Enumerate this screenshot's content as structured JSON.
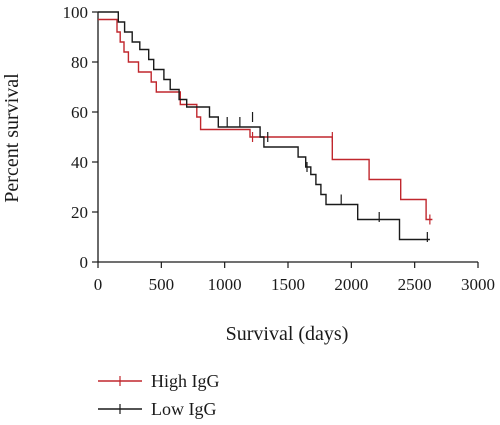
{
  "chart_data": {
    "type": "line",
    "xlabel": "Survival (days)",
    "ylabel": "Percent survival",
    "xlim": [
      0,
      3000
    ],
    "ylim": [
      0,
      100
    ],
    "x_ticks": [
      0,
      500,
      1000,
      1500,
      2000,
      2500,
      3000
    ],
    "y_ticks": [
      0,
      20,
      40,
      60,
      80,
      100
    ],
    "x_tick_labels": [
      "0",
      "500",
      "1000",
      "1500",
      "2000",
      "2500",
      "3000"
    ],
    "y_tick_labels": [
      "0",
      "20",
      "40",
      "60",
      "80",
      "100"
    ],
    "grid": false,
    "legend": "bottom-left",
    "step": true,
    "series": [
      {
        "name": "High IgG",
        "color": "#c0272d",
        "points": [
          [
            0,
            97
          ],
          [
            150,
            97
          ],
          [
            150,
            92
          ],
          [
            175,
            92
          ],
          [
            175,
            88
          ],
          [
            205,
            88
          ],
          [
            205,
            84
          ],
          [
            240,
            84
          ],
          [
            240,
            80
          ],
          [
            320,
            80
          ],
          [
            320,
            76
          ],
          [
            420,
            76
          ],
          [
            420,
            72
          ],
          [
            460,
            72
          ],
          [
            460,
            68
          ],
          [
            650,
            68
          ],
          [
            650,
            63
          ],
          [
            780,
            63
          ],
          [
            780,
            58
          ],
          [
            810,
            58
          ],
          [
            810,
            53
          ],
          [
            1200,
            53
          ],
          [
            1200,
            50
          ],
          [
            1850,
            50
          ],
          [
            1850,
            41
          ],
          [
            2140,
            41
          ],
          [
            2140,
            33
          ],
          [
            2390,
            33
          ],
          [
            2390,
            25
          ],
          [
            2590,
            25
          ],
          [
            2590,
            17
          ],
          [
            2640,
            17
          ]
        ],
        "censored": [
          [
            1220,
            50
          ],
          [
            1850,
            50
          ],
          [
            2620,
            17
          ]
        ]
      },
      {
        "name": "Low IgG",
        "color": "#1a1a1a",
        "points": [
          [
            0,
            100
          ],
          [
            160,
            100
          ],
          [
            160,
            96
          ],
          [
            210,
            96
          ],
          [
            210,
            92
          ],
          [
            270,
            92
          ],
          [
            270,
            88
          ],
          [
            330,
            88
          ],
          [
            330,
            85
          ],
          [
            400,
            85
          ],
          [
            400,
            81
          ],
          [
            440,
            81
          ],
          [
            440,
            77
          ],
          [
            520,
            77
          ],
          [
            520,
            73
          ],
          [
            570,
            73
          ],
          [
            570,
            69
          ],
          [
            640,
            69
          ],
          [
            640,
            65
          ],
          [
            700,
            65
          ],
          [
            700,
            62
          ],
          [
            880,
            62
          ],
          [
            880,
            58
          ],
          [
            950,
            58
          ],
          [
            950,
            54
          ],
          [
            1280,
            54
          ],
          [
            1280,
            50
          ],
          [
            1310,
            50
          ],
          [
            1310,
            46
          ],
          [
            1580,
            46
          ],
          [
            1580,
            42
          ],
          [
            1640,
            42
          ],
          [
            1640,
            38
          ],
          [
            1680,
            38
          ],
          [
            1680,
            35
          ],
          [
            1720,
            35
          ],
          [
            1720,
            31
          ],
          [
            1760,
            31
          ],
          [
            1760,
            27
          ],
          [
            1800,
            27
          ],
          [
            1800,
            23
          ],
          [
            2050,
            23
          ],
          [
            2050,
            17
          ],
          [
            2380,
            17
          ],
          [
            2380,
            9
          ],
          [
            2620,
            9
          ]
        ],
        "censored": [
          [
            1020,
            56
          ],
          [
            1120,
            56
          ],
          [
            1220,
            58
          ],
          [
            1340,
            50
          ],
          [
            1650,
            38
          ],
          [
            1920,
            25
          ],
          [
            2220,
            18
          ],
          [
            2600,
            10
          ]
        ]
      }
    ]
  }
}
